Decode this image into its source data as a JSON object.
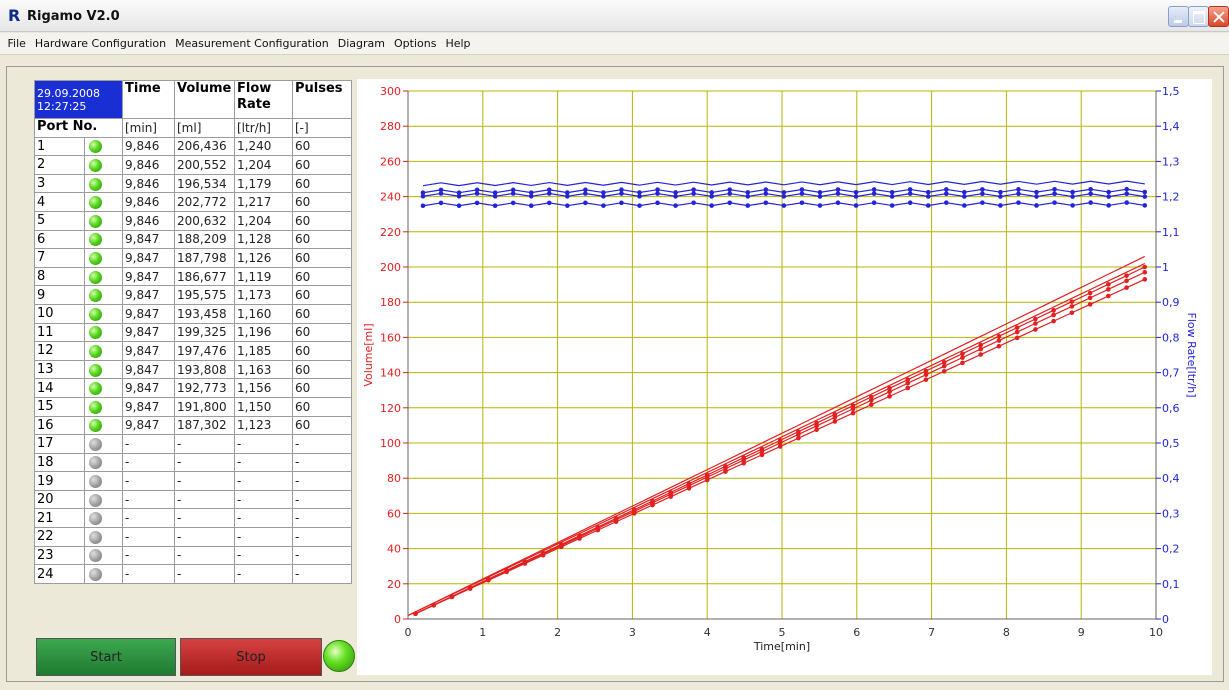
{
  "window": {
    "title": "Rigamo V2.0",
    "logo": "R"
  },
  "menu": [
    "File",
    "Hardware Configuration",
    "Measurement Configuration",
    "Diagram",
    "Options",
    "Help"
  ],
  "table": {
    "datetime": {
      "date": "29.09.2008",
      "time": "12:27:25"
    },
    "headers": [
      "Time",
      "Volume",
      "Flow Rate",
      "Pulses"
    ],
    "port_label": "Port No.",
    "units": [
      "[min]",
      "[ml]",
      "[ltr/h]",
      "[-]"
    ],
    "rows": [
      {
        "port": "1",
        "status": "on",
        "time": "9,846",
        "volume": "206,436",
        "flow": "1,240",
        "pulses": "60"
      },
      {
        "port": "2",
        "status": "on",
        "time": "9,846",
        "volume": "200,552",
        "flow": "1,204",
        "pulses": "60"
      },
      {
        "port": "3",
        "status": "on",
        "time": "9,846",
        "volume": "196,534",
        "flow": "1,179",
        "pulses": "60"
      },
      {
        "port": "4",
        "status": "on",
        "time": "9,846",
        "volume": "202,772",
        "flow": "1,217",
        "pulses": "60"
      },
      {
        "port": "5",
        "status": "on",
        "time": "9,846",
        "volume": "200,632",
        "flow": "1,204",
        "pulses": "60"
      },
      {
        "port": "6",
        "status": "on",
        "time": "9,847",
        "volume": "188,209",
        "flow": "1,128",
        "pulses": "60"
      },
      {
        "port": "7",
        "status": "on",
        "time": "9,847",
        "volume": "187,798",
        "flow": "1,126",
        "pulses": "60"
      },
      {
        "port": "8",
        "status": "on",
        "time": "9,847",
        "volume": "186,677",
        "flow": "1,119",
        "pulses": "60"
      },
      {
        "port": "9",
        "status": "on",
        "time": "9,847",
        "volume": "195,575",
        "flow": "1,173",
        "pulses": "60"
      },
      {
        "port": "10",
        "status": "on",
        "time": "9,847",
        "volume": "193,458",
        "flow": "1,160",
        "pulses": "60"
      },
      {
        "port": "11",
        "status": "on",
        "time": "9,847",
        "volume": "199,325",
        "flow": "1,196",
        "pulses": "60"
      },
      {
        "port": "12",
        "status": "on",
        "time": "9,847",
        "volume": "197,476",
        "flow": "1,185",
        "pulses": "60"
      },
      {
        "port": "13",
        "status": "on",
        "time": "9,847",
        "volume": "193,808",
        "flow": "1,163",
        "pulses": "60"
      },
      {
        "port": "14",
        "status": "on",
        "time": "9,847",
        "volume": "192,773",
        "flow": "1,156",
        "pulses": "60"
      },
      {
        "port": "15",
        "status": "on",
        "time": "9,847",
        "volume": "191,800",
        "flow": "1,150",
        "pulses": "60"
      },
      {
        "port": "16",
        "status": "on",
        "time": "9,847",
        "volume": "187,302",
        "flow": "1,123",
        "pulses": "60"
      },
      {
        "port": "17",
        "status": "off",
        "time": "-",
        "volume": "-",
        "flow": "-",
        "pulses": "-"
      },
      {
        "port": "18",
        "status": "off",
        "time": "-",
        "volume": "-",
        "flow": "-",
        "pulses": "-"
      },
      {
        "port": "19",
        "status": "off",
        "time": "-",
        "volume": "-",
        "flow": "-",
        "pulses": "-"
      },
      {
        "port": "20",
        "status": "off",
        "time": "-",
        "volume": "-",
        "flow": "-",
        "pulses": "-"
      },
      {
        "port": "21",
        "status": "off",
        "time": "-",
        "volume": "-",
        "flow": "-",
        "pulses": "-"
      },
      {
        "port": "22",
        "status": "off",
        "time": "-",
        "volume": "-",
        "flow": "-",
        "pulses": "-"
      },
      {
        "port": "23",
        "status": "off",
        "time": "-",
        "volume": "-",
        "flow": "-",
        "pulses": "-"
      },
      {
        "port": "24",
        "status": "off",
        "time": "-",
        "volume": "-",
        "flow": "-",
        "pulses": "-"
      }
    ]
  },
  "controls": {
    "start_label": "Start",
    "stop_label": "Stop",
    "start_color": "#2a8f3e",
    "stop_color": "#c02a2a"
  },
  "chart_data": {
    "type": "line",
    "xlabel": "Time[min]",
    "ylabel_left": "Volume[ml]",
    "ylabel_right": "Flow Rate[ltr/h]",
    "xlim": [
      0,
      10
    ],
    "ylim_left": [
      0,
      300
    ],
    "ylim_right": [
      0,
      1.5
    ],
    "x_ticks": [
      "0",
      "1",
      "2",
      "3",
      "4",
      "5",
      "6",
      "7",
      "8",
      "9",
      "10"
    ],
    "y_left_ticks": [
      "0",
      "20",
      "40",
      "60",
      "80",
      "100",
      "120",
      "140",
      "160",
      "180",
      "200",
      "220",
      "240",
      "260",
      "280",
      "300"
    ],
    "y_right_ticks": [
      "0",
      "0,1",
      "0,2",
      "0,3",
      "0,4",
      "0,5",
      "0,6",
      "0,7",
      "0,8",
      "0,9",
      "1",
      "1,1",
      "1,2",
      "1,3",
      "1,4",
      "1,5"
    ],
    "grid": true,
    "grid_color": "#b5b600",
    "volume_color": "#e32020",
    "flow_color": "#2323d8",
    "volume_series": [
      {
        "x": [
          0,
          9.85
        ],
        "y": [
          2,
          206
        ]
      },
      {
        "x": [
          0,
          9.85
        ],
        "y": [
          2,
          202
        ]
      },
      {
        "x": [
          0.1,
          9.85
        ],
        "y": [
          3,
          200
        ]
      },
      {
        "x": [
          0.1,
          9.85
        ],
        "y": [
          3,
          197
        ]
      },
      {
        "x": [
          0.1,
          9.85
        ],
        "y": [
          3,
          193
        ]
      }
    ],
    "flow_series": [
      {
        "x": [
          0.2,
          9.85
        ],
        "y": [
          1.235,
          1.24
        ]
      },
      {
        "x": [
          0.2,
          9.85
        ],
        "y": [
          1.215,
          1.217
        ]
      },
      {
        "x": [
          0.2,
          9.85
        ],
        "y": [
          1.205,
          1.204
        ]
      },
      {
        "x": [
          0.2,
          9.85
        ],
        "y": [
          1.178,
          1.179
        ]
      }
    ]
  }
}
